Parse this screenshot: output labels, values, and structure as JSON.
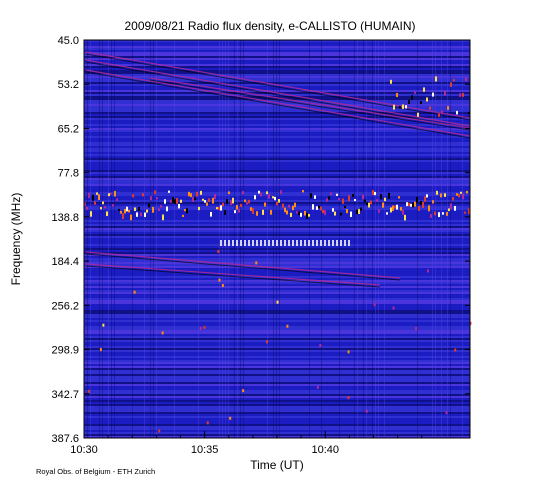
{
  "chart_data": {
    "type": "heatmap",
    "title": "2009/08/21  Radio flux density, e-CALLISTO (HUMAIN)",
    "xlabel": "Time (UT)",
    "ylabel": "Frequency (MHz)",
    "x_ticks": [
      "10:30",
      "10:35",
      "10:40"
    ],
    "y_ticks": [
      "45.0",
      "53.2",
      "65.2",
      "77.8",
      "138.8",
      "184.4",
      "256.2",
      "298.9",
      "342.7",
      "387.6"
    ],
    "grid": false,
    "colormap": [
      "#000000",
      "#1c1cc8",
      "#3636dc",
      "#5a3ce8",
      "#b02a9a",
      "#e03c2c",
      "#ff8c14",
      "#ffe050",
      "#ffffff"
    ]
  },
  "footer": {
    "credit": "Royal Obs. of Belgium - ETH Zurich"
  }
}
